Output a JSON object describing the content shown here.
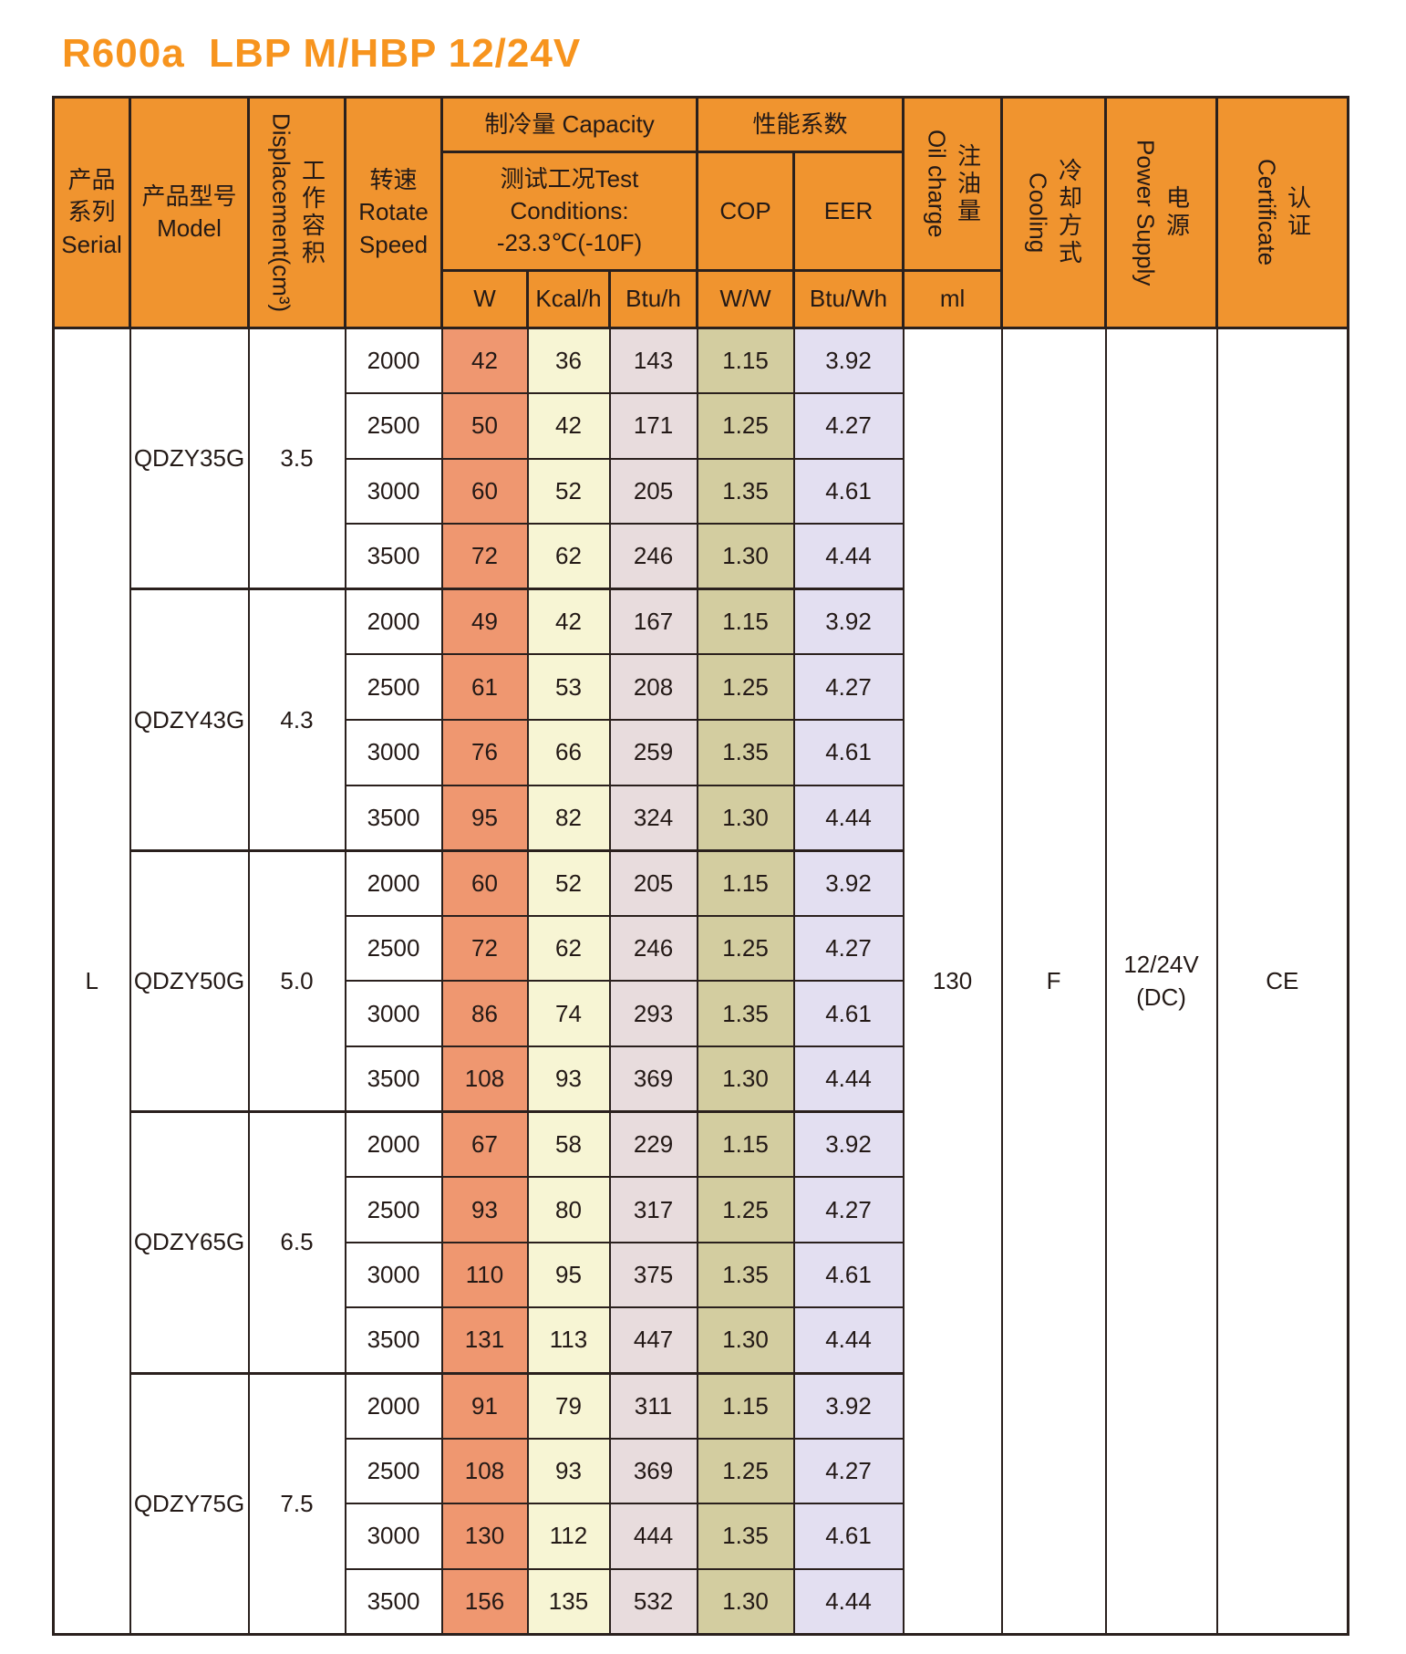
{
  "title": "R600a  LBP M/HBP 12/24V",
  "colors": {
    "header_bg": "#F0942F",
    "title": "#F7941E",
    "line": "#2A201D",
    "cell_w": "#EF9770",
    "cell_kcal": "#F7F5D4",
    "cell_btu": "#E8DCDD",
    "cell_cop": "#D3CDA0",
    "cell_eer": "#E3DFF1"
  },
  "table": {
    "header": {
      "serial": {
        "zh1": "产品",
        "zh2": "系列",
        "en": "Serial"
      },
      "model": {
        "zh": "产品型号",
        "en": "Model"
      },
      "displacement": {
        "en": "Displacement(cm³)",
        "zh": "工作容积"
      },
      "rotate_speed": {
        "zh": "转速",
        "en1": "Rotate",
        "en2": "Speed"
      },
      "capacity_group": "制冷量 Capacity",
      "test_conditions_line1": "测试工况Test Conditions:",
      "test_conditions_line2": "-23.3℃(-10F)",
      "unit_w": "W",
      "unit_kcal": "Kcal/h",
      "unit_btu": "Btu/h",
      "performance_group": "性能系数",
      "cop_label": "COP",
      "cop_unit": "W/W",
      "eer_label": "EER",
      "eer_unit": "Btu/Wh",
      "oil_charge": {
        "en": "Oil charge",
        "zh": "注油量",
        "unit": "ml"
      },
      "cooling": {
        "en": "Cooling",
        "zh": "冷却方式"
      },
      "power_supply": {
        "en": "Power Supply",
        "zh": "电源"
      },
      "certificate": {
        "en": "Certificate",
        "zh": "认证"
      }
    },
    "merged": {
      "serial": "L",
      "oil_charge": "130",
      "cooling": "F",
      "power_supply_line1": "12/24V",
      "power_supply_line2": "(DC)",
      "certificate": "CE"
    },
    "groups": [
      {
        "model": "QDZY35G",
        "displacement": "3.5",
        "rows": [
          {
            "speed": "2000",
            "w": "42",
            "kcal": "36",
            "btu": "143",
            "cop": "1.15",
            "eer": "3.92"
          },
          {
            "speed": "2500",
            "w": "50",
            "kcal": "42",
            "btu": "171",
            "cop": "1.25",
            "eer": "4.27"
          },
          {
            "speed": "3000",
            "w": "60",
            "kcal": "52",
            "btu": "205",
            "cop": "1.35",
            "eer": "4.61"
          },
          {
            "speed": "3500",
            "w": "72",
            "kcal": "62",
            "btu": "246",
            "cop": "1.30",
            "eer": "4.44"
          }
        ]
      },
      {
        "model": "QDZY43G",
        "displacement": "4.3",
        "rows": [
          {
            "speed": "2000",
            "w": "49",
            "kcal": "42",
            "btu": "167",
            "cop": "1.15",
            "eer": "3.92"
          },
          {
            "speed": "2500",
            "w": "61",
            "kcal": "53",
            "btu": "208",
            "cop": "1.25",
            "eer": "4.27"
          },
          {
            "speed": "3000",
            "w": "76",
            "kcal": "66",
            "btu": "259",
            "cop": "1.35",
            "eer": "4.61"
          },
          {
            "speed": "3500",
            "w": "95",
            "kcal": "82",
            "btu": "324",
            "cop": "1.30",
            "eer": "4.44"
          }
        ]
      },
      {
        "model": "QDZY50G",
        "displacement": "5.0",
        "rows": [
          {
            "speed": "2000",
            "w": "60",
            "kcal": "52",
            "btu": "205",
            "cop": "1.15",
            "eer": "3.92"
          },
          {
            "speed": "2500",
            "w": "72",
            "kcal": "62",
            "btu": "246",
            "cop": "1.25",
            "eer": "4.27"
          },
          {
            "speed": "3000",
            "w": "86",
            "kcal": "74",
            "btu": "293",
            "cop": "1.35",
            "eer": "4.61"
          },
          {
            "speed": "3500",
            "w": "108",
            "kcal": "93",
            "btu": "369",
            "cop": "1.30",
            "eer": "4.44"
          }
        ]
      },
      {
        "model": "QDZY65G",
        "displacement": "6.5",
        "rows": [
          {
            "speed": "2000",
            "w": "67",
            "kcal": "58",
            "btu": "229",
            "cop": "1.15",
            "eer": "3.92"
          },
          {
            "speed": "2500",
            "w": "93",
            "kcal": "80",
            "btu": "317",
            "cop": "1.25",
            "eer": "4.27"
          },
          {
            "speed": "3000",
            "w": "110",
            "kcal": "95",
            "btu": "375",
            "cop": "1.35",
            "eer": "4.61"
          },
          {
            "speed": "3500",
            "w": "131",
            "kcal": "113",
            "btu": "447",
            "cop": "1.30",
            "eer": "4.44"
          }
        ]
      },
      {
        "model": "QDZY75G",
        "displacement": "7.5",
        "rows": [
          {
            "speed": "2000",
            "w": "91",
            "kcal": "79",
            "btu": "311",
            "cop": "1.15",
            "eer": "3.92"
          },
          {
            "speed": "2500",
            "w": "108",
            "kcal": "93",
            "btu": "369",
            "cop": "1.25",
            "eer": "4.27"
          },
          {
            "speed": "3000",
            "w": "130",
            "kcal": "112",
            "btu": "444",
            "cop": "1.35",
            "eer": "4.61"
          },
          {
            "speed": "3500",
            "w": "156",
            "kcal": "135",
            "btu": "532",
            "cop": "1.30",
            "eer": "4.44"
          }
        ]
      }
    ]
  }
}
